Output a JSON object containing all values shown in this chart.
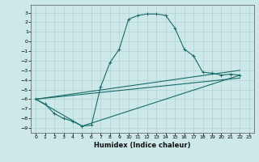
{
  "title": "",
  "xlabel": "Humidex (Indice chaleur)",
  "ylabel": "",
  "bg_color": "#cce8e8",
  "grid_color": "#aacccc",
  "line_color": "#1a6b6b",
  "xlim": [
    -0.5,
    23.5
  ],
  "ylim": [
    -9.5,
    3.8
  ],
  "xticks": [
    0,
    1,
    2,
    3,
    4,
    5,
    6,
    7,
    8,
    9,
    10,
    11,
    12,
    13,
    14,
    15,
    16,
    17,
    18,
    19,
    20,
    21,
    22,
    23
  ],
  "yticks": [
    3,
    2,
    1,
    0,
    -1,
    -2,
    -3,
    -4,
    -5,
    -6,
    -7,
    -8,
    -9
  ],
  "series0_x": [
    0,
    1,
    2,
    3,
    4,
    5,
    6,
    7,
    8,
    9,
    10,
    11,
    12,
    13,
    14,
    15,
    16,
    17,
    18,
    19,
    20,
    21,
    22
  ],
  "series0_y": [
    -6.0,
    -6.5,
    -7.5,
    -8.0,
    -8.3,
    -8.8,
    -8.7,
    -4.7,
    -2.2,
    -0.8,
    2.3,
    2.7,
    2.85,
    2.85,
    2.7,
    1.4,
    -0.8,
    -1.5,
    -3.2,
    -3.3,
    -3.5,
    -3.4,
    -3.5
  ],
  "line1_x": [
    0,
    5,
    22
  ],
  "line1_y": [
    -6.0,
    -8.8,
    -3.5
  ],
  "line2_x": [
    0,
    22
  ],
  "line2_y": [
    -6.0,
    -3.0
  ],
  "line3_x": [
    0,
    22
  ],
  "line3_y": [
    -6.0,
    -3.8
  ],
  "xlabel_fontsize": 6,
  "tick_fontsize": 4.5,
  "linewidth": 0.8,
  "marker_size": 2.5
}
